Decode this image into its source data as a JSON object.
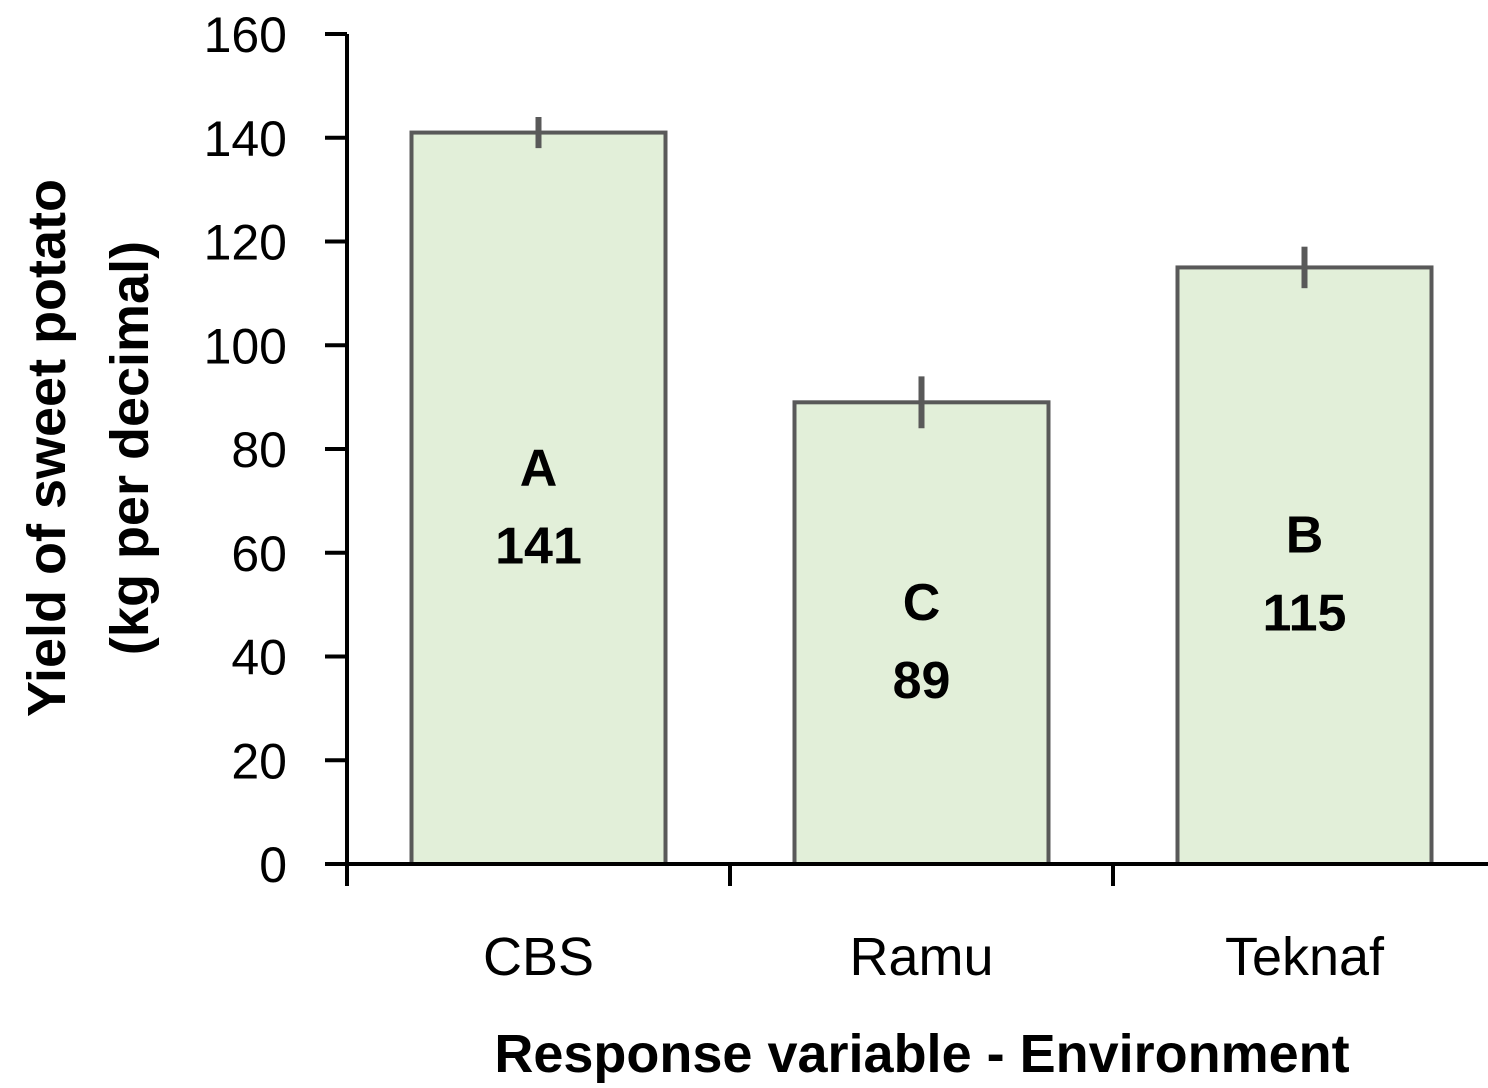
{
  "chart_data": {
    "type": "bar",
    "categories": [
      "CBS",
      "Ramu",
      "Teknaf"
    ],
    "values": [
      141,
      89,
      115
    ],
    "error": [
      3,
      5,
      4
    ],
    "bar_letters": [
      "A",
      "C",
      "B"
    ],
    "bar_value_labels": [
      "141",
      "89",
      "115"
    ],
    "xlabel": "Response variable - Environment",
    "ylabel_line1": "Yield of sweet potato",
    "ylabel_line2": "(kg per decimal)",
    "ylim": [
      0,
      160
    ],
    "yticks": [
      "0",
      "20",
      "40",
      "60",
      "80",
      "100",
      "120",
      "140",
      "160"
    ],
    "grid": false,
    "colors": {
      "bar_fill": "#e2efd9",
      "bar_stroke": "#595959",
      "axis": "#000000"
    }
  }
}
